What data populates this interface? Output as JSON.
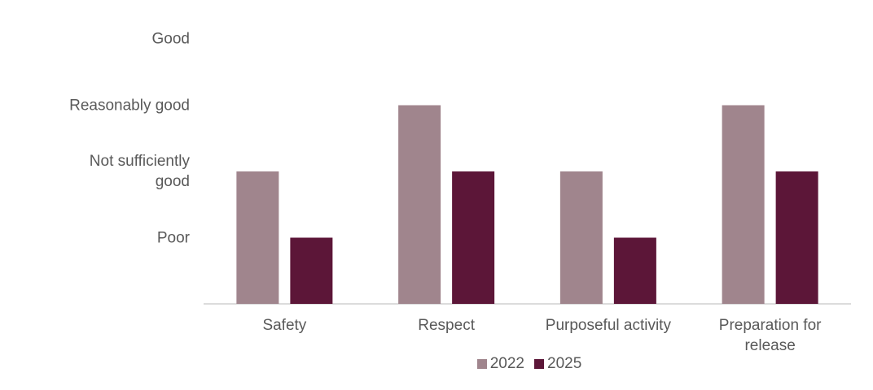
{
  "chart_data": {
    "type": "bar",
    "categories": [
      "Safety",
      "Respect",
      "Purposeful activity",
      "Preparation for release"
    ],
    "series": [
      {
        "name": "2022",
        "color": "#a0858d",
        "values": [
          2,
          3,
          2,
          3
        ]
      },
      {
        "name": "2025",
        "color": "#5c1638",
        "values": [
          1,
          2,
          1,
          2
        ]
      }
    ],
    "ylim": [
      0,
      4
    ],
    "yticks": [
      {
        "value": 1,
        "label": "Poor"
      },
      {
        "value": 2,
        "label": "Not sufficiently good"
      },
      {
        "value": 3,
        "label": "Reasonably good"
      },
      {
        "value": 4,
        "label": "Good"
      }
    ],
    "grid": false
  }
}
